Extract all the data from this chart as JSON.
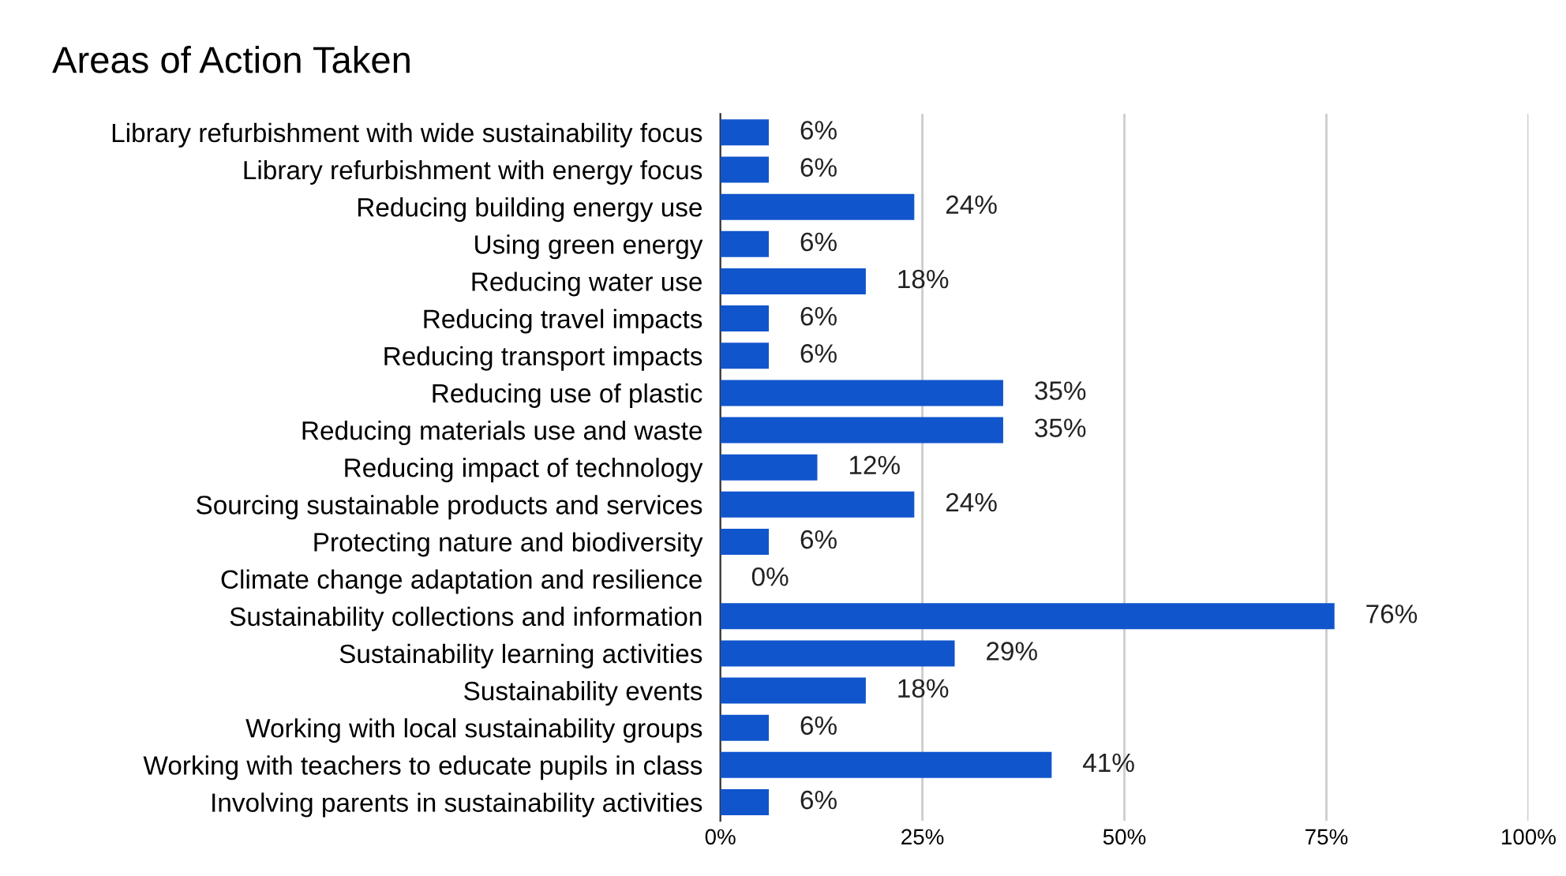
{
  "chart_data": {
    "type": "bar",
    "orientation": "horizontal",
    "title": "Areas of Action Taken",
    "categories": [
      "Library refurbishment with wide sustainability focus",
      "Library refurbishment with energy focus",
      "Reducing building energy use",
      "Using green energy",
      "Reducing water use",
      "Reducing travel impacts",
      "Reducing transport impacts",
      "Reducing use of plastic",
      "Reducing materials use and waste",
      "Reducing impact of technology",
      "Sourcing sustainable products and services",
      "Protecting nature and biodiversity",
      "Climate change adaptation and resilience",
      "Sustainability collections and information",
      "Sustainability learning activities",
      "Sustainability events",
      "Working with local sustainability groups",
      "Working with teachers to educate pupils in class",
      "Involving parents in sustainability activities"
    ],
    "values": [
      6,
      6,
      24,
      6,
      18,
      6,
      6,
      35,
      35,
      12,
      24,
      6,
      0,
      76,
      29,
      18,
      6,
      41,
      6
    ],
    "value_labels": [
      "6%",
      "6%",
      "24%",
      "6%",
      "18%",
      "6%",
      "6%",
      "35%",
      "35%",
      "12%",
      "24%",
      "6%",
      "0%",
      "76%",
      "29%",
      "18%",
      "6%",
      "41%",
      "6%"
    ],
    "color": "#1155cc",
    "xlim": [
      0,
      100
    ],
    "xticks": [
      {
        "value": 0,
        "label": "0%"
      },
      {
        "value": 25,
        "label": "25%"
      },
      {
        "value": 50,
        "label": "50%"
      },
      {
        "value": 75,
        "label": "75%"
      },
      {
        "value": 100,
        "label": "100%"
      }
    ],
    "grid": "x",
    "legend": false
  }
}
